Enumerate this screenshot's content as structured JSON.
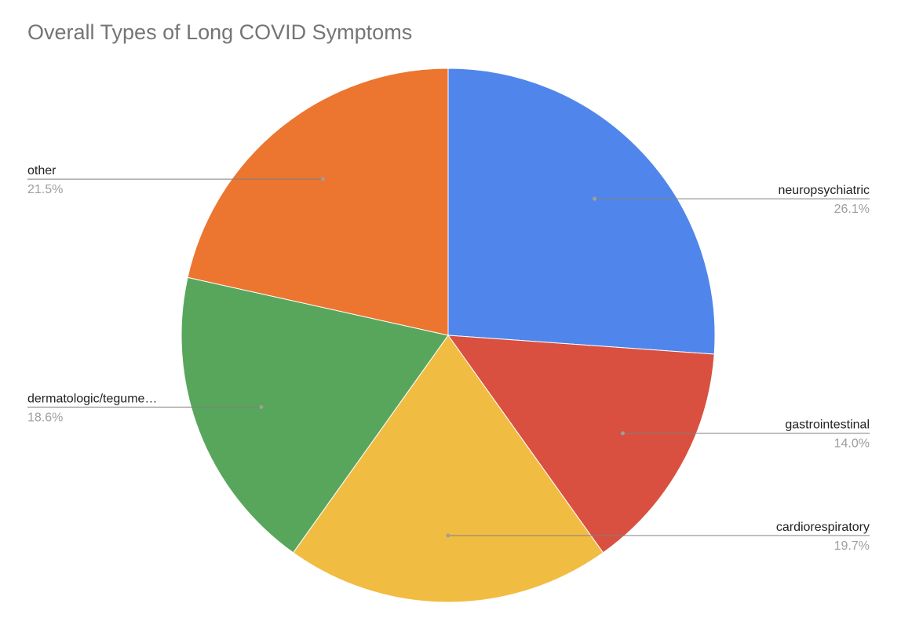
{
  "chart_data": {
    "type": "pie",
    "title": "Overall Types of Long COVID Symptoms",
    "slices": [
      {
        "label": "neuropsychiatric",
        "display_label": "neuropsychiatric",
        "value": 26.1,
        "value_label": "26.1%",
        "color": "#5086EB"
      },
      {
        "label": "gastrointestinal",
        "display_label": "gastrointestinal",
        "value": 14.0,
        "value_label": "14.0%",
        "color": "#D95040"
      },
      {
        "label": "cardiorespiratory",
        "display_label": "cardiorespiratory",
        "value": 19.7,
        "value_label": "19.7%",
        "color": "#F1BC42"
      },
      {
        "label": "dermatologic/tegumentary",
        "display_label": "dermatologic/tegume…",
        "value": 18.6,
        "value_label": "18.6%",
        "color": "#58A65C"
      },
      {
        "label": "other",
        "display_label": "other",
        "value": 21.5,
        "value_label": "21.5%",
        "color": "#EC7530"
      }
    ],
    "start_angle": "12 o'clock",
    "direction": "clockwise",
    "legend": "none",
    "label_style": "callout lines with category and percent"
  }
}
